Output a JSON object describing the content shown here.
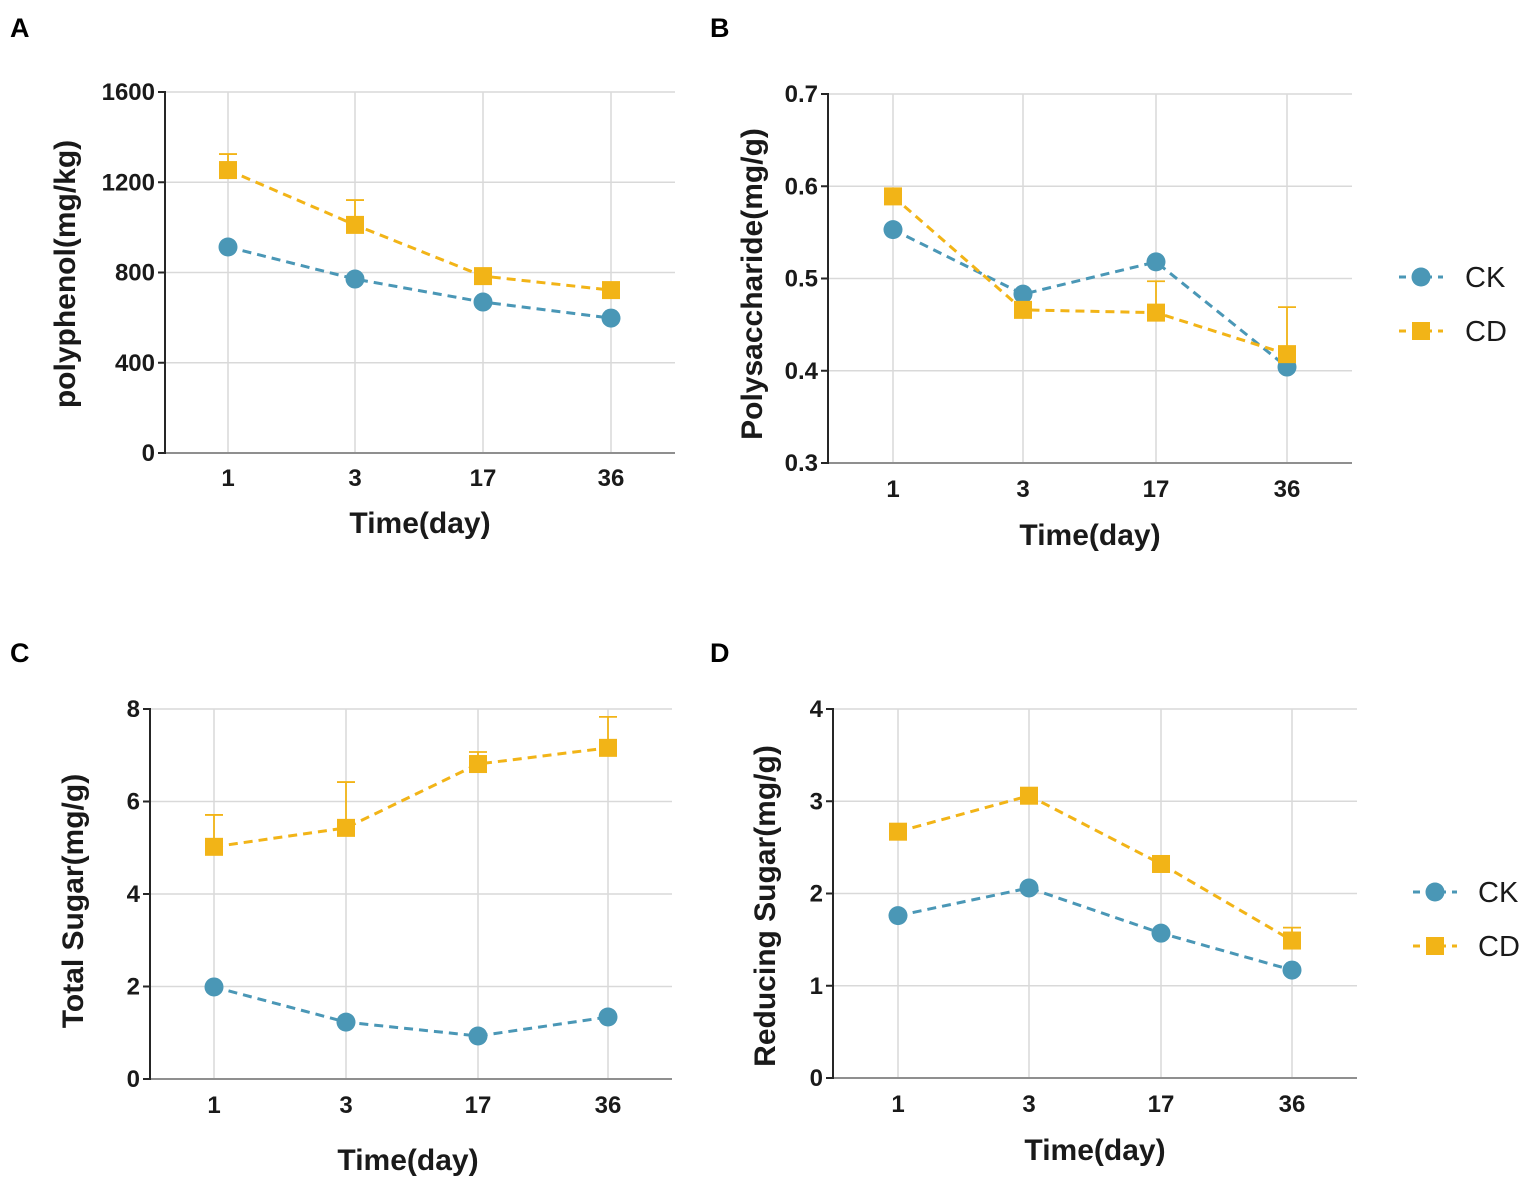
{
  "chart_data": [
    {
      "panel": "A",
      "type": "line",
      "categories": [
        "1",
        "3",
        "17",
        "36"
      ],
      "xlabel": "Time(day)",
      "ylabel": "polyphenol(mg/kg)",
      "ylim": [
        0,
        1600
      ],
      "yticks": [
        0,
        400,
        800,
        1200,
        1600
      ],
      "grid": true,
      "legend": null,
      "series": [
        {
          "name": "CK",
          "color": "#4A97B6",
          "values": [
            913,
            771,
            669,
            598
          ],
          "error_upper": [
            null,
            null,
            null,
            null
          ]
        },
        {
          "name": "CD",
          "color": "#F2B417",
          "values": [
            1254,
            1011,
            784,
            722
          ],
          "error_upper": [
            1325,
            1121,
            null,
            null
          ]
        }
      ]
    },
    {
      "panel": "B",
      "type": "line",
      "categories": [
        "1",
        "3",
        "17",
        "36"
      ],
      "xlabel": "Time(day)",
      "ylabel": "Polysaccharide(mg/g)",
      "ylim": [
        0.3,
        0.7
      ],
      "yticks": [
        0.3,
        0.4,
        0.5,
        0.6,
        0.7
      ],
      "grid": true,
      "legend": "right",
      "series": [
        {
          "name": "CK",
          "color": "#4A97B6",
          "values": [
            0.553,
            0.483,
            0.518,
            0.404
          ],
          "error_upper": [
            null,
            null,
            null,
            null
          ]
        },
        {
          "name": "CD",
          "color": "#F2B417",
          "values": [
            0.589,
            0.466,
            0.463,
            0.418
          ],
          "error_upper": [
            null,
            null,
            0.497,
            0.469
          ]
        }
      ]
    },
    {
      "panel": "C",
      "type": "line",
      "categories": [
        "1",
        "3",
        "17",
        "36"
      ],
      "xlabel": "Time(day)",
      "ylabel": "Total Sugar(mg/g)",
      "ylim": [
        0,
        8
      ],
      "yticks": [
        0,
        2,
        4,
        6,
        8
      ],
      "grid": true,
      "legend": null,
      "series": [
        {
          "name": "CK",
          "color": "#4A97B6",
          "values": [
            1.99,
            1.23,
            0.93,
            1.34
          ],
          "error_upper": [
            null,
            null,
            null,
            null
          ]
        },
        {
          "name": "CD",
          "color": "#F2B417",
          "values": [
            5.02,
            5.43,
            6.81,
            7.16
          ],
          "error_upper": [
            5.71,
            6.42,
            7.07,
            7.83
          ]
        }
      ]
    },
    {
      "panel": "D",
      "type": "line",
      "categories": [
        "1",
        "3",
        "17",
        "36"
      ],
      "xlabel": "Time(day)",
      "ylabel": "Reducing Sugar(mg/g)",
      "ylim": [
        0,
        4
      ],
      "yticks": [
        0,
        1,
        2,
        3,
        4
      ],
      "grid": true,
      "legend": "right",
      "series": [
        {
          "name": "CK",
          "color": "#4A97B6",
          "values": [
            1.76,
            2.06,
            1.57,
            1.17
          ],
          "error_upper": [
            null,
            null,
            null,
            null
          ]
        },
        {
          "name": "CD",
          "color": "#F2B417",
          "values": [
            2.67,
            3.06,
            2.32,
            1.49
          ],
          "error_upper": [
            null,
            null,
            null,
            1.63
          ]
        }
      ]
    }
  ]
}
